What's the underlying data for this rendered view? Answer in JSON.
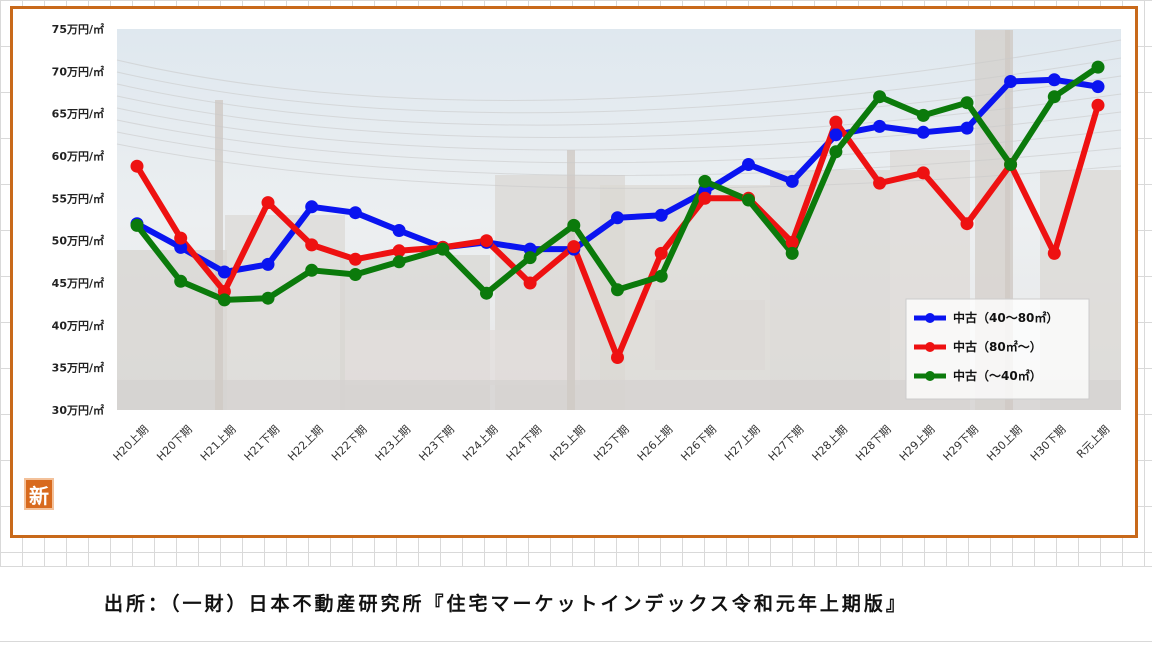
{
  "chart_data": {
    "type": "line",
    "y_tick_labels": [
      "75万円/㎡",
      "70万円/㎡",
      "65万円/㎡",
      "60万円/㎡",
      "55万円/㎡",
      "50万円/㎡",
      "45万円/㎡",
      "40万円/㎡",
      "35万円/㎡",
      "30万円/㎡"
    ],
    "ylim": [
      30,
      75
    ],
    "categories": [
      "H20上期",
      "H20下期",
      "H21上期",
      "H21下期",
      "H22上期",
      "H22下期",
      "H23上期",
      "H23下期",
      "H24上期",
      "H24下期",
      "H25上期",
      "H25下期",
      "H26上期",
      "H26下期",
      "H27上期",
      "H27下期",
      "H28上期",
      "H28下期",
      "H29上期",
      "H29下期",
      "H30上期",
      "H30下期",
      "R元上期"
    ],
    "series": [
      {
        "name": "中古（40～80㎡）",
        "color": "#0a14f0",
        "values": [
          52.0,
          49.2,
          46.3,
          47.2,
          54.0,
          53.3,
          51.2,
          49.2,
          49.8,
          49.0,
          49.0,
          52.7,
          53.0,
          55.8,
          59.0,
          57.0,
          62.5,
          63.5,
          62.8,
          63.3,
          68.8,
          69.0,
          68.2
        ]
      },
      {
        "name": "中古（80㎡～）",
        "color": "#ee1111",
        "values": [
          58.8,
          50.3,
          44.0,
          54.5,
          49.5,
          47.8,
          48.8,
          49.2,
          50.0,
          45.0,
          49.3,
          36.2,
          48.5,
          55.0,
          55.0,
          49.8,
          64.0,
          56.8,
          58.0,
          52.0,
          59.0,
          48.5,
          66.0
        ]
      },
      {
        "name": "中古（～40㎡）",
        "color": "#0b7a0b",
        "values": [
          51.8,
          45.2,
          43.0,
          43.2,
          46.5,
          46.0,
          47.5,
          49.0,
          43.8,
          48.0,
          51.8,
          44.2,
          45.8,
          57.0,
          54.8,
          48.5,
          60.5,
          67.0,
          64.8,
          66.3,
          59.0,
          67.0,
          70.5
        ]
      }
    ],
    "legend_position": "bottom-right",
    "grid": false
  },
  "source_note": "出所：（一財）日本不動産研究所『住宅マーケットインデックス令和元年上期版』",
  "badge_text": "新"
}
